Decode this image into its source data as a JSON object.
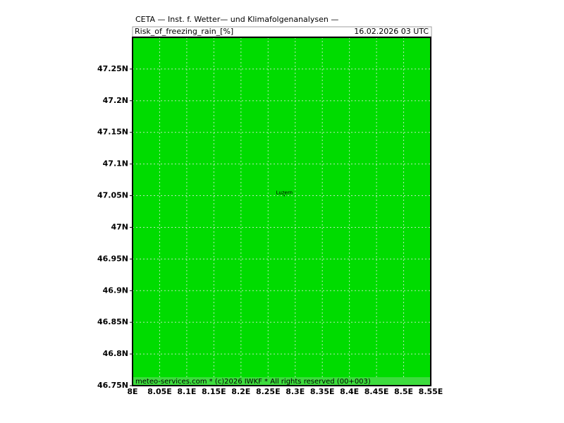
{
  "header": {
    "institute": "CETA — Inst. f. Wetter— und Klimafolgenanalysen —",
    "field": "Risk_of_freezing_rain_[%]",
    "valid_time": "16.02.2026 03 UTC"
  },
  "map": {
    "fill": "#00dc00",
    "grid": true,
    "xlim": [
      8,
      8.55
    ],
    "ylim": [
      46.75,
      47.3
    ],
    "xticks": [
      {
        "value": 8,
        "label": "8E"
      },
      {
        "value": 8.05,
        "label": "8.05E"
      },
      {
        "value": 8.1,
        "label": "8.1E"
      },
      {
        "value": 8.15,
        "label": "8.15E"
      },
      {
        "value": 8.2,
        "label": "8.2E"
      },
      {
        "value": 8.25,
        "label": "8.25E"
      },
      {
        "value": 8.3,
        "label": "8.3E"
      },
      {
        "value": 8.35,
        "label": "8.35E"
      },
      {
        "value": 8.4,
        "label": "8.4E"
      },
      {
        "value": 8.45,
        "label": "8.45E"
      },
      {
        "value": 8.5,
        "label": "8.5E"
      },
      {
        "value": 8.55,
        "label": "8.55E"
      }
    ],
    "yticks": [
      {
        "value": 46.75,
        "label": "46.75N"
      },
      {
        "value": 46.8,
        "label": "46.8N"
      },
      {
        "value": 46.85,
        "label": "46.85N"
      },
      {
        "value": 46.9,
        "label": "46.9N"
      },
      {
        "value": 46.95,
        "label": "46.95N"
      },
      {
        "value": 47,
        "label": "47N"
      },
      {
        "value": 47.05,
        "label": "47.05N"
      },
      {
        "value": 47.1,
        "label": "47.1N"
      },
      {
        "value": 47.15,
        "label": "47.15N"
      },
      {
        "value": 47.2,
        "label": "47.2N"
      },
      {
        "value": 47.25,
        "label": "47.25N"
      }
    ],
    "places": [
      {
        "name": "Luzern",
        "lon": 8.28,
        "lat": 47.05
      }
    ]
  },
  "footer": "meteo-services.com * (c)2026 IWKF * All rights reserved (00+003)"
}
